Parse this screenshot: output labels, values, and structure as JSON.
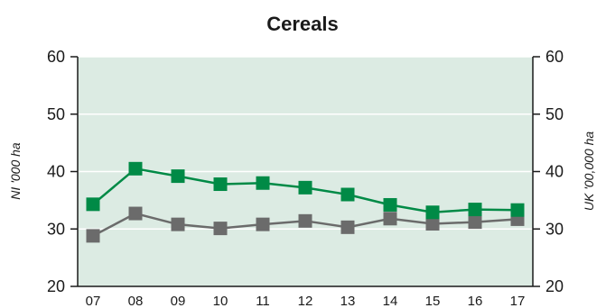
{
  "chart_data": {
    "type": "line",
    "title": "Cereals",
    "ylabel_left": "NI '000 ha",
    "ylabel_right": "UK '00,000 ha",
    "categories": [
      "07",
      "08",
      "09",
      "10",
      "11",
      "12",
      "13",
      "14",
      "15",
      "16",
      "17"
    ],
    "y_ticks": [
      "20",
      "30",
      "40",
      "50",
      "60"
    ],
    "ylim": [
      20,
      60
    ],
    "grid": true,
    "series": [
      {
        "color": "#008a46",
        "values": [
          34.3,
          40.5,
          39.2,
          37.8,
          38.0,
          37.2,
          36.0,
          34.2,
          32.9,
          33.4,
          33.3
        ]
      },
      {
        "color": "#6b6b6b",
        "values": [
          28.8,
          32.7,
          30.8,
          30.1,
          30.8,
          31.4,
          30.3,
          31.8,
          30.9,
          31.2,
          31.7
        ]
      }
    ],
    "plot_background": "#dcebe3"
  }
}
